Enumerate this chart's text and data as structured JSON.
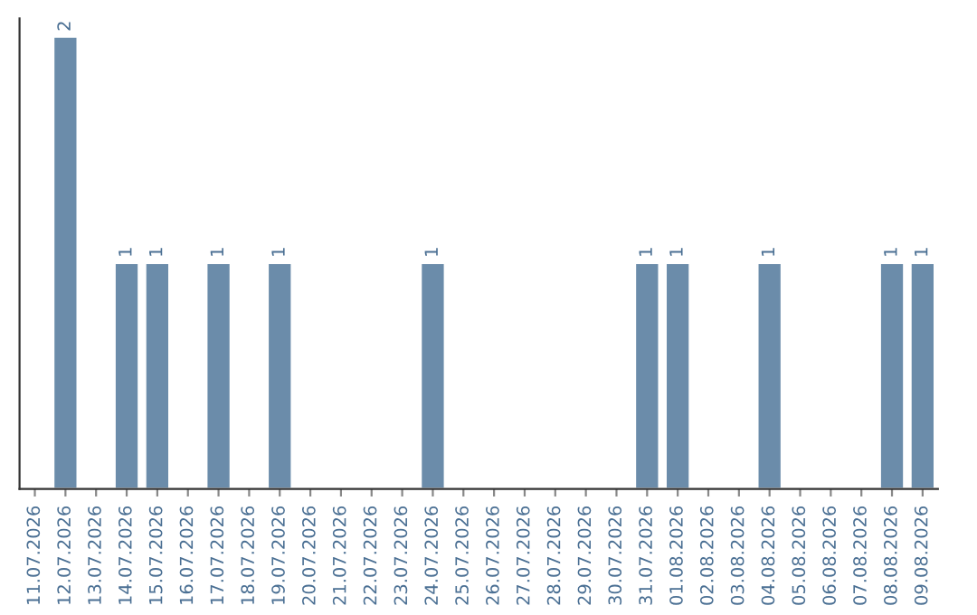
{
  "chart_data": {
    "type": "bar",
    "categories": [
      "11.07.2026",
      "12.07.2026",
      "13.07.2026",
      "14.07.2026",
      "15.07.2026",
      "16.07.2026",
      "17.07.2026",
      "18.07.2026",
      "19.07.2026",
      "20.07.2026",
      "21.07.2026",
      "22.07.2026",
      "23.07.2026",
      "24.07.2026",
      "25.07.2026",
      "26.07.2026",
      "27.07.2026",
      "28.07.2026",
      "29.07.2026",
      "30.07.2026",
      "31.07.2026",
      "01.08.2026",
      "02.08.2026",
      "03.08.2026",
      "04.08.2026",
      "05.08.2026",
      "06.08.2026",
      "07.08.2026",
      "08.08.2026",
      "09.08.2026"
    ],
    "values": [
      null,
      2,
      null,
      1,
      1,
      null,
      1,
      null,
      1,
      null,
      null,
      null,
      null,
      1,
      null,
      null,
      null,
      null,
      null,
      null,
      1,
      1,
      null,
      null,
      1,
      null,
      null,
      null,
      1,
      1
    ],
    "value_labels": [
      null,
      "2",
      null,
      "1",
      "1",
      null,
      "1",
      null,
      "1",
      null,
      null,
      null,
      null,
      "1",
      null,
      null,
      null,
      null,
      null,
      null,
      "1",
      "1",
      null,
      null,
      "1",
      null,
      null,
      null,
      "1",
      "1"
    ],
    "color": "#6b8caa",
    "tick_labels": "x",
    "grid": false
  }
}
